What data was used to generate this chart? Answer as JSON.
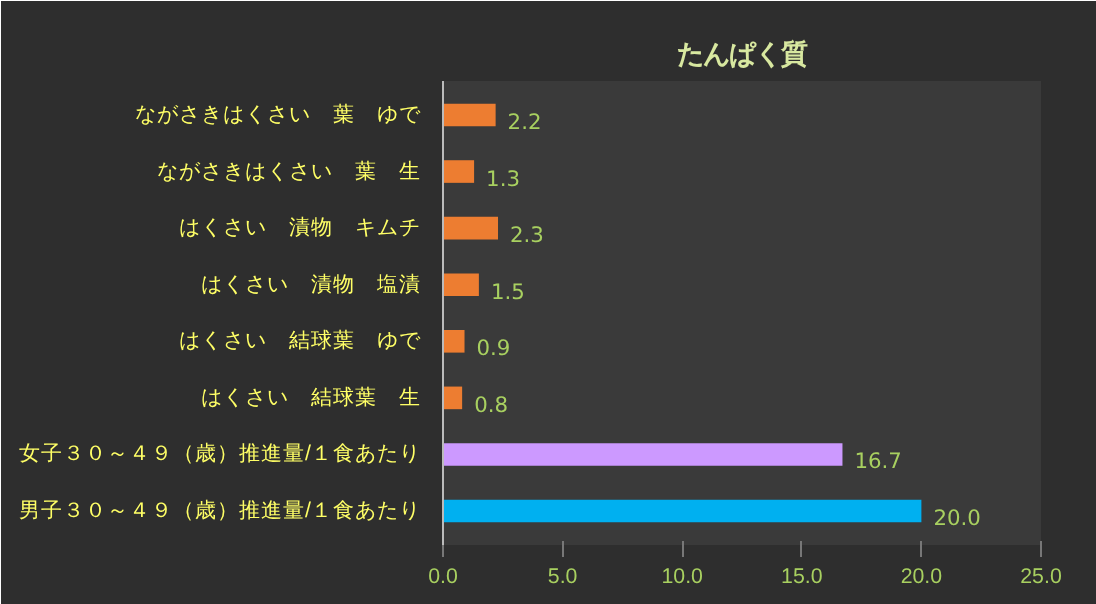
{
  "chart_data": {
    "type": "bar",
    "orientation": "horizontal",
    "title": "たんぱく質",
    "categories": [
      "ながさきはくさい　葉　ゆで",
      "ながさきはくさい　葉　生",
      "はくさい　漬物　キムチ",
      "はくさい　漬物　塩漬",
      "はくさい　結球葉　ゆで",
      "はくさい　結球葉　生",
      "女子３０～４９（歳）推進量/１食あたり",
      "男子３０～４９（歳）推進量/１食あたり"
    ],
    "values": [
      2.2,
      1.3,
      2.3,
      1.5,
      0.9,
      0.8,
      16.7,
      20.0
    ],
    "colors": [
      "#ed7d31",
      "#ed7d31",
      "#ed7d31",
      "#ed7d31",
      "#ed7d31",
      "#ed7d31",
      "#cc99ff",
      "#00b0f0"
    ],
    "value_labels": [
      "2.2",
      "1.3",
      "2.3",
      "1.5",
      "0.9",
      "0.8",
      "16.7",
      "20.0"
    ],
    "xlim": [
      0,
      25
    ],
    "xticks": [
      {
        "value": 0,
        "label": "0.0"
      },
      {
        "value": 5,
        "label": "5.0"
      },
      {
        "value": 10,
        "label": "10.0"
      },
      {
        "value": 15,
        "label": "15.0"
      },
      {
        "value": 20,
        "label": "20.0"
      },
      {
        "value": 25,
        "label": "25.0"
      }
    ],
    "grid": false
  }
}
